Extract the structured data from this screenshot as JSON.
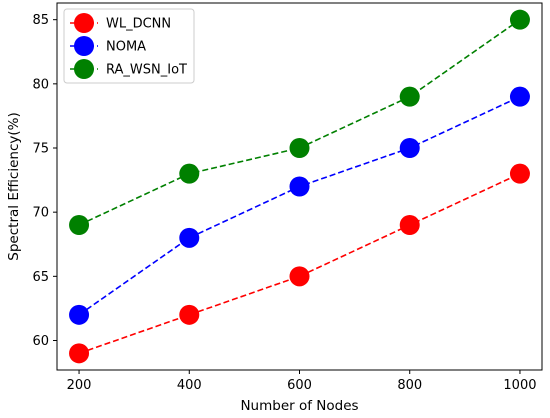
{
  "chart_data": {
    "type": "line",
    "title": "",
    "xlabel": "Number of Nodes",
    "ylabel": "Spectral Efficiency(%)",
    "x": [
      200,
      400,
      600,
      800,
      1000
    ],
    "x_ticks": [
      "200",
      "400",
      "600",
      "800",
      "1000"
    ],
    "y_ticks": [
      "60",
      "65",
      "70",
      "75",
      "80",
      "85"
    ],
    "xlim": [
      160,
      1040
    ],
    "ylim": [
      57.7,
      86.3
    ],
    "grid": false,
    "legend_position": "top-left",
    "line_style": "dashed",
    "marker": "circle",
    "series": [
      {
        "name": "WL_DCNN",
        "color": "#ff0000",
        "values": [
          59,
          62,
          65,
          69,
          73
        ]
      },
      {
        "name": "NOMA",
        "color": "#0000ff",
        "values": [
          62,
          68,
          72,
          75,
          79
        ]
      },
      {
        "name": "RA_WSN_IoT",
        "color": "#008000",
        "values": [
          69,
          73,
          75,
          79,
          85
        ]
      }
    ]
  }
}
